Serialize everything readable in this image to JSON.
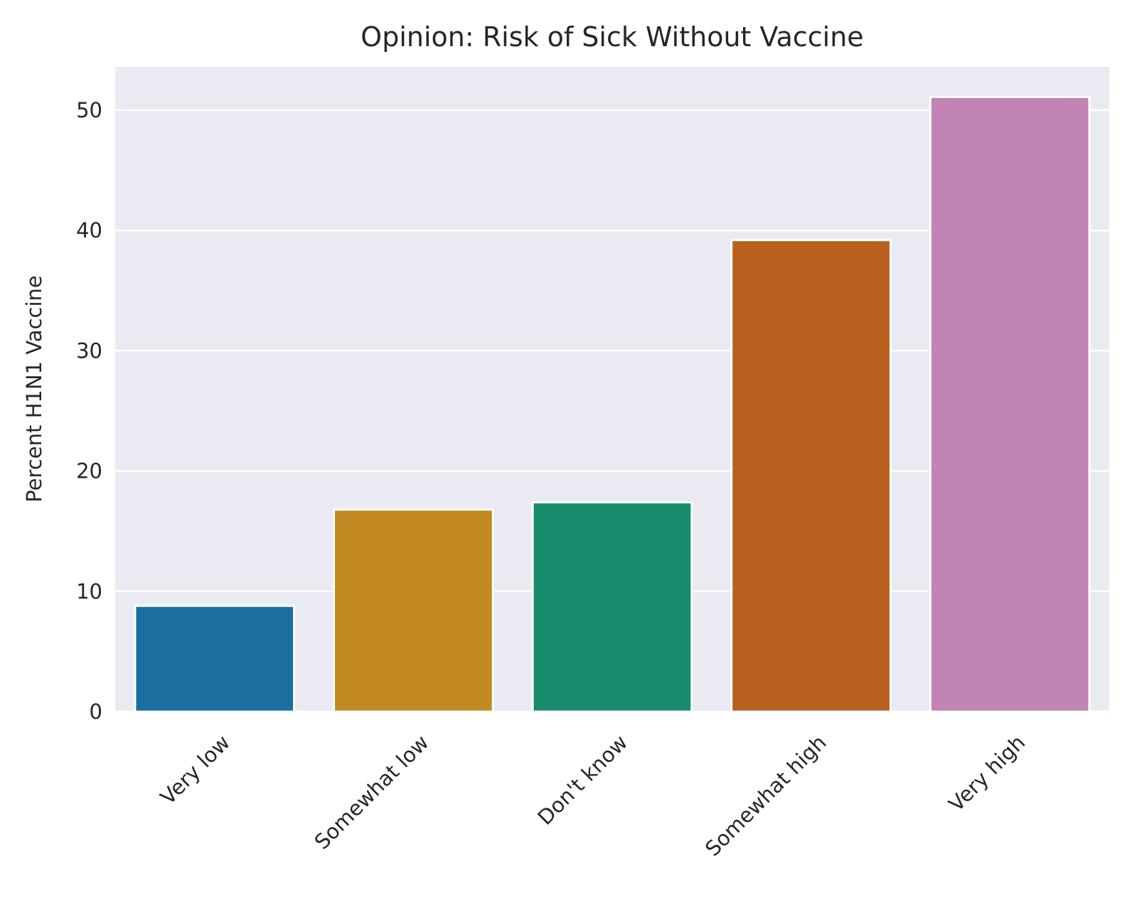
{
  "chart_data": {
    "type": "bar",
    "title": "Opinion: Risk of Sick Without Vaccine",
    "xlabel": "",
    "ylabel": "Percent H1N1 Vaccine",
    "categories": [
      "Very low",
      "Somewhat low",
      "Don't know",
      "Somewhat high",
      "Very high"
    ],
    "values": [
      8.8,
      16.8,
      17.4,
      39.2,
      51.1
    ],
    "colors": [
      "#1a6f9f",
      "#c28821",
      "#178b6c",
      "#b8601e",
      "#c283b5"
    ],
    "ylim": [
      0,
      53.6
    ],
    "yticks": [
      0,
      10,
      20,
      30,
      40,
      50
    ],
    "grid": true,
    "legend": "none",
    "background": "#eaeaf2"
  }
}
